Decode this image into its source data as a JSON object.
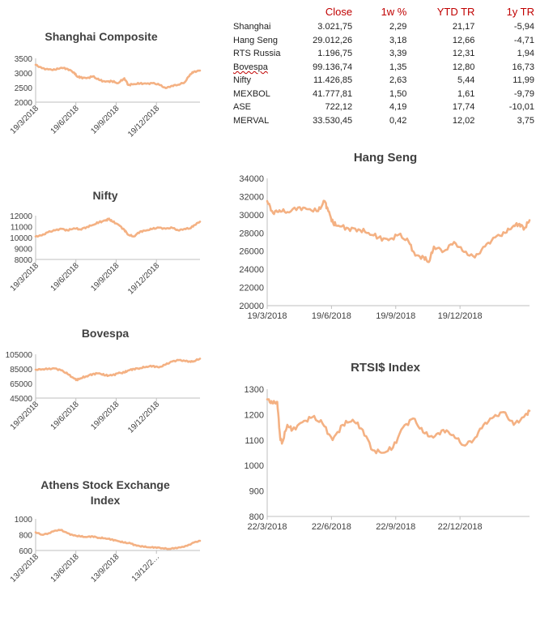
{
  "table": {
    "headers": [
      "",
      "Close",
      "1w %",
      "YTD TR",
      "1y TR"
    ],
    "rows": [
      [
        "Shanghai",
        "3.021,75",
        "2,29",
        "21,17",
        "-5,94"
      ],
      [
        "Hang Seng",
        "29.012,26",
        "3,18",
        "12,66",
        "-4,71"
      ],
      [
        "RTS Russia",
        "1.196,75",
        "3,39",
        "12,31",
        "1,94"
      ],
      [
        "Bovespa",
        "99.136,74",
        "1,35",
        "12,80",
        "16,73"
      ],
      [
        "Nifty",
        "11.426,85",
        "2,63",
        "5,44",
        "11,99"
      ],
      [
        "MEXBOL",
        "41.777,81",
        "1,50",
        "1,61",
        "-9,79"
      ],
      [
        "ASE",
        "722,12",
        "4,19",
        "17,74",
        "-10,01"
      ],
      [
        "MERVAL",
        "33.530,45",
        "0,42",
        "12,02",
        "3,75"
      ]
    ]
  },
  "series_color": "#f4b183",
  "chart_data": [
    {
      "id": "shanghai",
      "type": "line",
      "title": "Shanghai Composite",
      "x_ticks": [
        "19/3/2018",
        "19/6/2018",
        "19/9/2018",
        "19/12/2018"
      ],
      "y_ticks": [
        "3500",
        "3000",
        "2500",
        "2000"
      ],
      "ylim": [
        2000,
        3500
      ],
      "x": [
        "2018-03-19",
        "2018-04-02",
        "2018-04-16",
        "2018-05-01",
        "2018-05-15",
        "2018-05-29",
        "2018-06-12",
        "2018-06-19",
        "2018-06-26",
        "2018-07-10",
        "2018-07-24",
        "2018-08-07",
        "2018-08-21",
        "2018-09-04",
        "2018-09-18",
        "2018-10-02",
        "2018-10-11",
        "2018-10-23",
        "2018-11-06",
        "2018-11-20",
        "2018-12-04",
        "2018-12-18",
        "2019-01-02",
        "2019-01-16",
        "2019-01-30",
        "2019-02-13",
        "2019-02-25",
        "2019-03-05",
        "2019-03-19"
      ],
      "y": [
        3280,
        3160,
        3120,
        3110,
        3180,
        3140,
        3020,
        2880,
        2850,
        2820,
        2880,
        2760,
        2700,
        2720,
        2650,
        2820,
        2590,
        2620,
        2640,
        2630,
        2650,
        2600,
        2480,
        2560,
        2600,
        2680,
        2950,
        3040,
        3080
      ]
    },
    {
      "id": "nifty",
      "type": "line",
      "title": "Nifty",
      "x_ticks": [
        "19/3/2018",
        "19/6/2018",
        "19/9/2018",
        "19/12/2018"
      ],
      "y_ticks": [
        "12000",
        "11000",
        "10000",
        "9000",
        "8000"
      ],
      "ylim": [
        8000,
        12000
      ],
      "x": [
        "2018-03-19",
        "2018-04-02",
        "2018-04-16",
        "2018-05-01",
        "2018-05-15",
        "2018-05-29",
        "2018-06-12",
        "2018-06-26",
        "2018-07-10",
        "2018-07-24",
        "2018-08-07",
        "2018-08-21",
        "2018-08-28",
        "2018-09-04",
        "2018-09-18",
        "2018-10-02",
        "2018-10-11",
        "2018-10-23",
        "2018-11-06",
        "2018-11-20",
        "2018-12-04",
        "2018-12-18",
        "2019-01-02",
        "2019-01-16",
        "2019-01-30",
        "2019-02-13",
        "2019-02-25",
        "2019-03-05",
        "2019-03-19"
      ],
      "y": [
        10100,
        10200,
        10500,
        10650,
        10800,
        10650,
        10850,
        10750,
        10950,
        11150,
        11400,
        11550,
        11700,
        11500,
        11200,
        10700,
        10250,
        10100,
        10550,
        10650,
        10800,
        10900,
        10800,
        10900,
        10650,
        10800,
        10850,
        11100,
        11450
      ]
    },
    {
      "id": "bovespa",
      "type": "line",
      "title": "Bovespa",
      "x_ticks": [
        "19/3/2018",
        "19/6/2018",
        "19/9/2018",
        "19/12/2018"
      ],
      "y_ticks": [
        "105000",
        "85000",
        "65000",
        "45000"
      ],
      "ylim": [
        45000,
        105000
      ],
      "x": [
        "2018-03-19",
        "2018-04-02",
        "2018-04-16",
        "2018-05-01",
        "2018-05-15",
        "2018-05-29",
        "2018-06-12",
        "2018-06-19",
        "2018-06-26",
        "2018-07-10",
        "2018-07-24",
        "2018-08-07",
        "2018-08-21",
        "2018-09-04",
        "2018-09-18",
        "2018-10-02",
        "2018-10-11",
        "2018-10-23",
        "2018-11-06",
        "2018-11-20",
        "2018-12-04",
        "2018-12-18",
        "2019-01-02",
        "2019-01-16",
        "2019-01-30",
        "2019-02-13",
        "2019-02-25",
        "2019-03-05",
        "2019-03-19"
      ],
      "y": [
        84000,
        84500,
        85000,
        85500,
        83000,
        78000,
        72000,
        70000,
        72000,
        75000,
        78000,
        79000,
        76000,
        76000,
        79000,
        80000,
        83000,
        85000,
        86000,
        88000,
        89000,
        87000,
        91000,
        95000,
        97000,
        96000,
        95000,
        95500,
        99000
      ]
    },
    {
      "id": "athens",
      "type": "line",
      "title": "Athens Stock Exchange Index",
      "x_ticks": [
        "13/3/2018",
        "13/6/2018",
        "13/9/2018",
        "13/12/2…"
      ],
      "y_ticks": [
        "1000",
        "800",
        "600"
      ],
      "ylim": [
        600,
        1000
      ],
      "x": [
        "2018-03-13",
        "2018-03-27",
        "2018-04-10",
        "2018-04-24",
        "2018-05-08",
        "2018-05-22",
        "2018-06-05",
        "2018-06-19",
        "2018-07-03",
        "2018-07-17",
        "2018-07-31",
        "2018-08-14",
        "2018-08-28",
        "2018-09-11",
        "2018-09-25",
        "2018-10-09",
        "2018-10-23",
        "2018-11-06",
        "2018-11-20",
        "2018-12-04",
        "2018-12-18",
        "2019-01-01",
        "2019-01-15",
        "2019-01-29",
        "2019-02-12",
        "2019-02-26",
        "2019-03-12"
      ],
      "y": [
        830,
        800,
        815,
        850,
        860,
        820,
        790,
        780,
        770,
        780,
        760,
        755,
        740,
        720,
        700,
        690,
        660,
        650,
        640,
        640,
        630,
        620,
        630,
        640,
        660,
        700,
        722
      ]
    },
    {
      "id": "hangseng",
      "type": "line",
      "title": "Hang Seng",
      "x_ticks": [
        "19/3/2018",
        "19/6/2018",
        "19/9/2018",
        "19/12/2018"
      ],
      "y_ticks": [
        "34000",
        "32000",
        "30000",
        "28000",
        "26000",
        "24000",
        "22000",
        "20000"
      ],
      "ylim": [
        20000,
        34000
      ],
      "x": [
        "2018-03-19",
        "2018-03-27",
        "2018-04-05",
        "2018-04-16",
        "2018-05-01",
        "2018-05-15",
        "2018-05-29",
        "2018-06-07",
        "2018-06-12",
        "2018-06-19",
        "2018-06-26",
        "2018-07-10",
        "2018-07-24",
        "2018-08-07",
        "2018-08-21",
        "2018-09-04",
        "2018-09-18",
        "2018-10-02",
        "2018-10-11",
        "2018-10-23",
        "2018-10-30",
        "2018-11-06",
        "2018-11-20",
        "2018-12-04",
        "2018-12-18",
        "2019-01-02",
        "2019-01-16",
        "2019-01-30",
        "2019-02-13",
        "2019-02-25",
        "2019-03-05",
        "2019-03-12",
        "2019-03-19"
      ],
      "y": [
        31500,
        30200,
        30500,
        30300,
        30800,
        30600,
        30400,
        31500,
        30400,
        29000,
        28800,
        28500,
        28400,
        28000,
        27500,
        27200,
        27800,
        27000,
        25500,
        25300,
        24800,
        26500,
        26000,
        27000,
        25900,
        25300,
        26500,
        27500,
        28000,
        28800,
        29000,
        28500,
        29400
      ]
    },
    {
      "id": "rtsi",
      "type": "line",
      "title": "RTSI$ Index",
      "x_ticks": [
        "22/3/2018",
        "22/6/2018",
        "22/9/2018",
        "22/12/2018"
      ],
      "y_ticks": [
        "1300",
        "1200",
        "1100",
        "1000",
        "900",
        "800"
      ],
      "ylim": [
        800,
        1300
      ],
      "x": [
        "2018-03-22",
        "2018-03-29",
        "2018-04-05",
        "2018-04-09",
        "2018-04-12",
        "2018-04-19",
        "2018-04-26",
        "2018-05-10",
        "2018-05-24",
        "2018-06-07",
        "2018-06-21",
        "2018-07-05",
        "2018-07-19",
        "2018-08-02",
        "2018-08-16",
        "2018-08-30",
        "2018-09-13",
        "2018-09-27",
        "2018-10-11",
        "2018-10-25",
        "2018-11-08",
        "2018-11-22",
        "2018-12-06",
        "2018-12-20",
        "2019-01-03",
        "2019-01-17",
        "2019-01-31",
        "2019-02-14",
        "2019-02-28",
        "2019-03-14",
        "2019-03-22"
      ],
      "y": [
        1260,
        1245,
        1250,
        1110,
        1090,
        1160,
        1140,
        1170,
        1190,
        1165,
        1100,
        1160,
        1180,
        1140,
        1060,
        1050,
        1070,
        1150,
        1185,
        1130,
        1110,
        1140,
        1120,
        1080,
        1100,
        1160,
        1190,
        1210,
        1160,
        1190,
        1215
      ]
    }
  ]
}
